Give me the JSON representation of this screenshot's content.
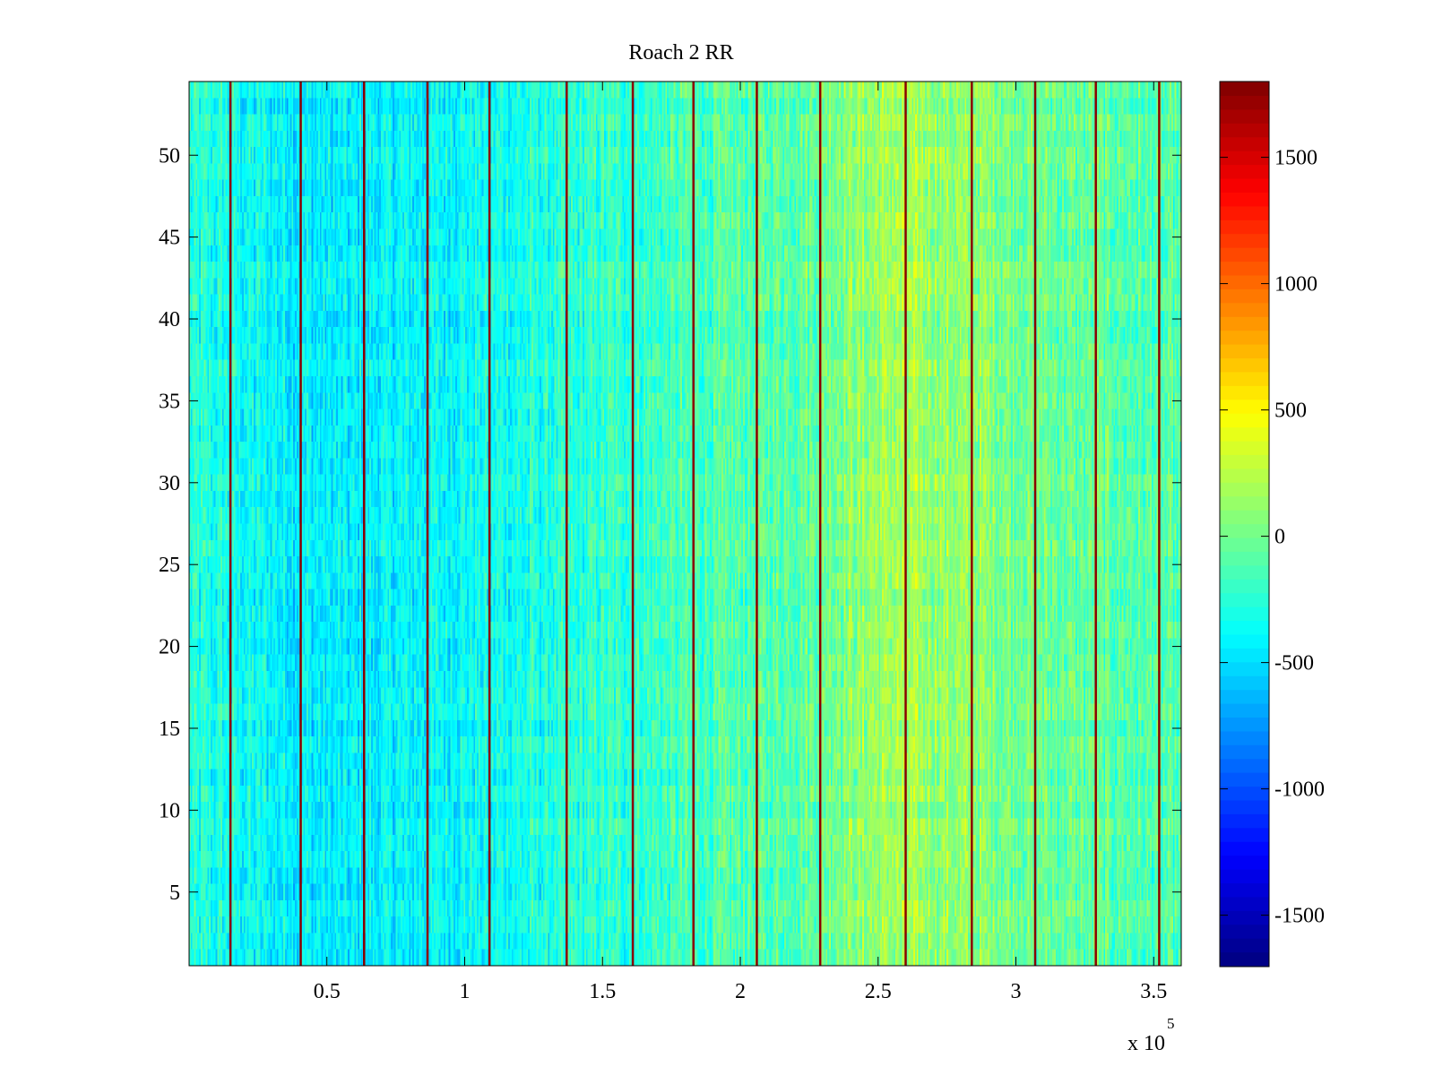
{
  "chart_data": {
    "type": "heatmap",
    "title": "Roach 2 RR",
    "xlabel": "",
    "ylabel": "",
    "colormap": "jet",
    "x_exponent_label": "x 10",
    "x_exponent_power": "5",
    "x_scale_multiplier": 100000,
    "xlim": [
      0,
      360000
    ],
    "ylim": [
      0.5,
      54.5
    ],
    "xticks": [
      0.5,
      1,
      1.5,
      2,
      2.5,
      3,
      3.5
    ],
    "xtick_labels": [
      "0.5",
      "1",
      "1.5",
      "2",
      "2.5",
      "3",
      "3.5"
    ],
    "yticks": [
      5,
      10,
      15,
      20,
      25,
      30,
      35,
      40,
      45,
      50
    ],
    "ytick_labels": [
      "5",
      "10",
      "15",
      "20",
      "25",
      "30",
      "35",
      "40",
      "45",
      "50"
    ],
    "clim": [
      -1700,
      1800
    ],
    "colorbar_ticks": [
      -1500,
      -1000,
      -500,
      0,
      500,
      1000,
      1500
    ],
    "colorbar_tick_labels": [
      "-1500",
      "-1000",
      "-500",
      "0",
      "500",
      "1000",
      "1500"
    ],
    "rows": 54,
    "background_trend": {
      "x": [
        0,
        25000,
        50000,
        75000,
        100000,
        125000,
        150000,
        175000,
        200000,
        225000,
        240000,
        255000,
        270000,
        285000,
        300000,
        325000,
        350000,
        360000
      ],
      "value": [
        -280,
        -380,
        -450,
        -420,
        -360,
        -310,
        -230,
        -170,
        -120,
        -40,
        80,
        160,
        130,
        90,
        20,
        -60,
        -120,
        -140
      ]
    },
    "value_spread": 220,
    "dark_red_vertical_lines_x": [
      15000,
      40500,
      63500,
      86500,
      109000,
      137000,
      161000,
      183000,
      206000,
      229000,
      260000,
      284000,
      307000,
      329000,
      352000
    ]
  }
}
